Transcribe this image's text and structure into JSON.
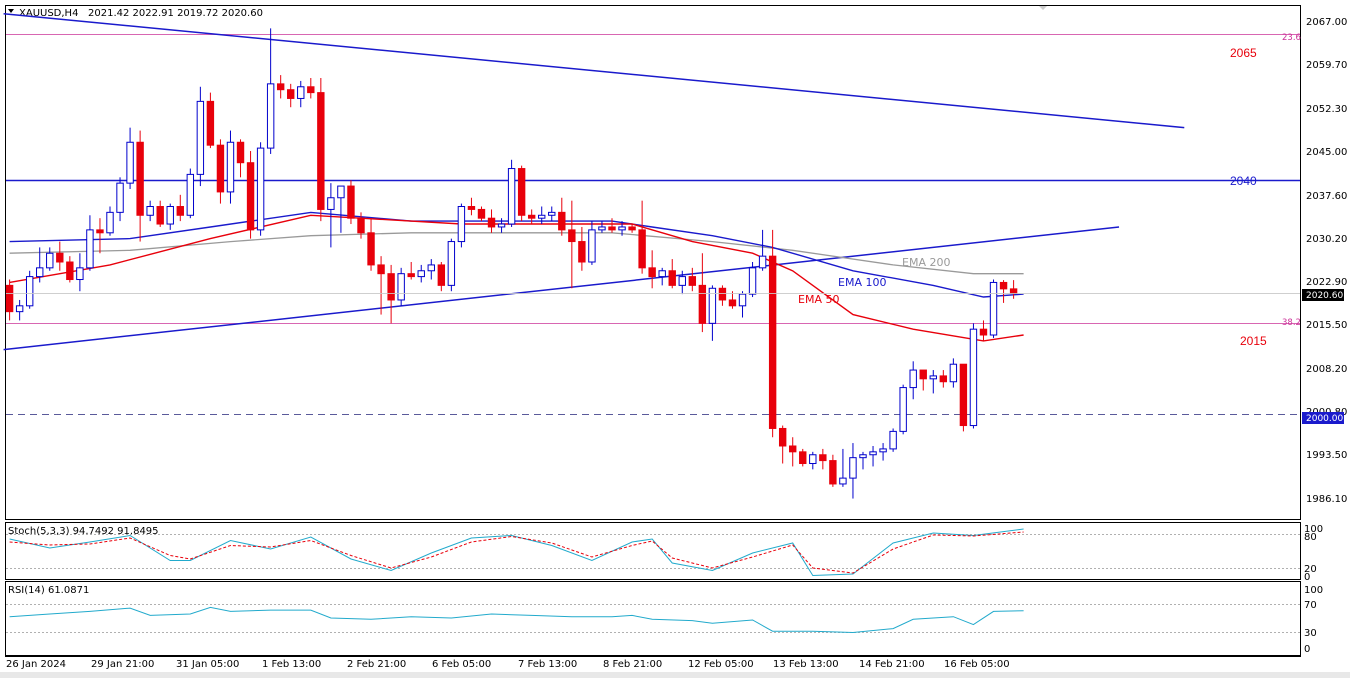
{
  "header": {
    "symbol": "XAUUSD,H4",
    "ohlc": "2021.42 2022.91 2019.72 2020.60"
  },
  "price_axis": {
    "labels": [
      "2067.00",
      "2059.70",
      "2052.30",
      "2045.00",
      "2037.60",
      "2030.20",
      "2022.90",
      "2015.50",
      "2008.20",
      "2000.80",
      "1993.50",
      "1986.10"
    ],
    "current_price": "2020.60",
    "round_level_tag": "2000.00"
  },
  "time_axis": {
    "labels": [
      "26 Jan 2024",
      "29 Jan 21:00",
      "31 Jan 05:00",
      "1 Feb 13:00",
      "2 Feb 21:00",
      "6 Feb 05:00",
      "7 Feb 13:00",
      "8 Feb 21:00",
      "12 Feb 05:00",
      "13 Feb 13:00",
      "14 Feb 21:00",
      "16 Feb 05:00"
    ]
  },
  "annotations": {
    "level_2065": "2065",
    "level_2040": "2040",
    "level_2015": "2015",
    "fib_236": "23.6",
    "fib_382": "38.2",
    "ema50": "EMA 50",
    "ema100": "EMA 100",
    "ema200": "EMA 200"
  },
  "stoch": {
    "label": "Stoch(5,3,3) 94.7492 91.8495",
    "axis": [
      "100",
      "80",
      "20",
      "0"
    ]
  },
  "rsi": {
    "label": "RSI(14) 61.0871",
    "axis": [
      "100",
      "70",
      "30",
      "0"
    ]
  },
  "colors": {
    "bull_fill": "#ffffff",
    "bear_fill": "#e8000b",
    "candle_outline": "#0000cc",
    "ema50": "#e8000b",
    "ema100": "#1a1acc",
    "ema200": "#9a9a9a",
    "trendline": "#1a1acc",
    "fib": "#cc3399",
    "stoch_main": "#22aacc",
    "stoch_signal": "#e8000b",
    "rsi": "#22aacc"
  },
  "chart_data": {
    "type": "candlestick",
    "symbol": "XAUUSD",
    "timeframe": "H4",
    "ylim": [
      1982,
      2070
    ],
    "candles": [
      [
        2022.0,
        2023.0,
        2016.0,
        2017.5
      ],
      [
        2017.5,
        2019.5,
        2016.0,
        2018.5
      ],
      [
        2018.5,
        2024.5,
        2018.0,
        2023.5
      ],
      [
        2023.5,
        2028.5,
        2022.5,
        2025.0
      ],
      [
        2025.0,
        2028.5,
        2024.5,
        2027.5
      ],
      [
        2027.5,
        2029.5,
        2024.5,
        2026.0
      ],
      [
        2026.0,
        2027.0,
        2022.5,
        2023.0
      ],
      [
        2023.0,
        2027.5,
        2021.0,
        2025.0
      ],
      [
        2025.0,
        2034.0,
        2024.5,
        2031.5
      ],
      [
        2031.5,
        2033.5,
        2027.5,
        2031.0
      ],
      [
        2031.0,
        2035.5,
        2030.5,
        2034.5
      ],
      [
        2034.5,
        2040.5,
        2033.0,
        2039.5
      ],
      [
        2039.5,
        2049.0,
        2038.5,
        2046.5
      ],
      [
        2046.5,
        2048.5,
        2029.5,
        2034.0
      ],
      [
        2034.0,
        2036.5,
        2033.0,
        2035.5
      ],
      [
        2035.5,
        2036.5,
        2032.0,
        2032.5
      ],
      [
        2032.5,
        2036.0,
        2031.5,
        2035.5
      ],
      [
        2035.5,
        2037.5,
        2033.0,
        2034.0
      ],
      [
        2034.0,
        2042.0,
        2033.5,
        2041.0
      ],
      [
        2041.0,
        2056.0,
        2039.0,
        2053.5
      ],
      [
        2053.5,
        2055.0,
        2045.5,
        2046.0
      ],
      [
        2046.0,
        2047.0,
        2036.0,
        2038.0
      ],
      [
        2038.0,
        2048.5,
        2036.0,
        2046.5
      ],
      [
        2046.5,
        2047.0,
        2040.5,
        2043.0
      ],
      [
        2043.0,
        2045.0,
        2030.0,
        2031.5
      ],
      [
        2031.5,
        2046.5,
        2030.5,
        2045.5
      ],
      [
        2045.5,
        2066.0,
        2044.5,
        2056.5
      ],
      [
        2056.5,
        2058.0,
        2054.0,
        2055.5
      ],
      [
        2055.5,
        2056.5,
        2052.5,
        2054.0
      ],
      [
        2054.0,
        2057.0,
        2052.5,
        2056.0
      ],
      [
        2056.0,
        2057.5,
        2054.0,
        2055.0
      ],
      [
        2055.0,
        2057.5,
        2033.0,
        2035.0
      ],
      [
        2035.0,
        2039.5,
        2028.5,
        2037.0
      ],
      [
        2037.0,
        2039.0,
        2031.0,
        2039.0
      ],
      [
        2039.0,
        2040.0,
        2032.5,
        2033.5
      ],
      [
        2033.5,
        2034.5,
        2030.0,
        2031.0
      ],
      [
        2031.0,
        2033.5,
        2024.5,
        2025.5
      ],
      [
        2025.5,
        2027.0,
        2017.0,
        2024.0
      ],
      [
        2024.0,
        2025.5,
        2015.5,
        2019.5
      ],
      [
        2019.5,
        2025.0,
        2018.5,
        2024.0
      ],
      [
        2024.0,
        2026.0,
        2023.0,
        2023.5
      ],
      [
        2023.5,
        2025.5,
        2022.5,
        2024.5
      ],
      [
        2024.5,
        2026.5,
        2023.0,
        2025.5
      ],
      [
        2025.5,
        2026.0,
        2021.0,
        2022.0
      ],
      [
        2022.0,
        2030.0,
        2021.0,
        2029.5
      ],
      [
        2029.5,
        2036.0,
        2028.5,
        2035.5
      ],
      [
        2035.5,
        2037.0,
        2034.0,
        2035.0
      ],
      [
        2035.0,
        2035.5,
        2033.0,
        2033.5
      ],
      [
        2033.5,
        2035.0,
        2031.0,
        2032.0
      ],
      [
        2032.0,
        2033.5,
        2031.0,
        2032.5
      ],
      [
        2032.5,
        2043.5,
        2032.0,
        2042.0
      ],
      [
        2042.0,
        2042.5,
        2033.0,
        2034.0
      ],
      [
        2034.0,
        2035.0,
        2032.5,
        2033.5
      ],
      [
        2033.5,
        2035.5,
        2032.5,
        2034.0
      ],
      [
        2034.0,
        2035.5,
        2033.0,
        2034.5
      ],
      [
        2034.5,
        2037.0,
        2030.5,
        2031.5
      ],
      [
        2031.5,
        2036.5,
        2021.5,
        2029.5
      ],
      [
        2029.5,
        2032.0,
        2024.5,
        2026.0
      ],
      [
        2026.0,
        2033.0,
        2025.5,
        2031.5
      ],
      [
        2031.5,
        2033.0,
        2031.0,
        2032.0
      ],
      [
        2032.0,
        2033.5,
        2031.0,
        2031.5
      ],
      [
        2031.5,
        2033.0,
        2030.5,
        2032.0
      ],
      [
        2032.0,
        2032.5,
        2031.0,
        2031.5
      ],
      [
        2031.5,
        2036.5,
        2024.0,
        2025.0
      ],
      [
        2025.0,
        2028.0,
        2021.5,
        2023.5
      ],
      [
        2023.5,
        2025.0,
        2022.0,
        2024.5
      ],
      [
        2024.5,
        2026.5,
        2021.5,
        2022.0
      ],
      [
        2022.0,
        2024.5,
        2020.5,
        2023.5
      ],
      [
        2023.5,
        2025.0,
        2021.0,
        2022.0
      ],
      [
        2022.0,
        2027.5,
        2014.0,
        2015.5
      ],
      [
        2015.5,
        2022.0,
        2012.5,
        2021.5
      ],
      [
        2021.5,
        2022.0,
        2018.5,
        2019.5
      ],
      [
        2019.5,
        2021.0,
        2018.0,
        2018.5
      ],
      [
        2018.5,
        2021.0,
        2016.5,
        2020.5
      ],
      [
        2020.5,
        2026.0,
        2020.0,
        2025.0
      ],
      [
        2025.0,
        2031.5,
        2024.5,
        2027.0
      ],
      [
        2027.0,
        2031.5,
        1996.0,
        1997.5
      ],
      [
        1997.5,
        1998.0,
        1991.5,
        1994.5
      ],
      [
        1994.5,
        1996.0,
        1991.0,
        1993.5
      ],
      [
        1993.5,
        1994.0,
        1991.0,
        1991.5
      ],
      [
        1991.5,
        1993.5,
        1990.5,
        1993.0
      ],
      [
        1993.0,
        1994.0,
        1990.5,
        1992.0
      ],
      [
        1992.0,
        1993.0,
        1987.5,
        1988.0
      ],
      [
        1988.0,
        1994.0,
        1987.5,
        1989.0
      ],
      [
        1989.0,
        1995.0,
        1985.5,
        1992.5
      ],
      [
        1992.5,
        1993.5,
        1990.5,
        1993.0
      ],
      [
        1993.0,
        1994.5,
        1991.0,
        1993.5
      ],
      [
        1993.5,
        1995.0,
        1992.0,
        1994.0
      ],
      [
        1994.0,
        1997.5,
        1993.5,
        1997.0
      ],
      [
        1997.0,
        2005.0,
        1996.5,
        2004.5
      ],
      [
        2004.5,
        2009.0,
        2002.5,
        2007.5
      ],
      [
        2007.5,
        2007.5,
        2004.0,
        2006.0
      ],
      [
        2006.0,
        2007.5,
        2003.5,
        2006.5
      ],
      [
        2006.5,
        2007.5,
        2004.5,
        2005.5
      ],
      [
        2005.5,
        2009.5,
        2004.5,
        2008.5
      ],
      [
        2008.5,
        2008.5,
        1997.0,
        1998.0
      ],
      [
        1998.0,
        2015.5,
        1997.5,
        2014.5
      ],
      [
        2014.5,
        2016.0,
        2012.5,
        2013.5
      ],
      [
        2013.5,
        2023.0,
        2013.0,
        2022.5
      ],
      [
        2022.5,
        2022.9,
        2019.0,
        2021.4
      ],
      [
        2021.4,
        2022.9,
        2019.7,
        2020.6
      ]
    ],
    "ema50": [
      [
        0,
        2022.5
      ],
      [
        10,
        2025.5
      ],
      [
        20,
        2030.0
      ],
      [
        30,
        2034.0
      ],
      [
        35,
        2033.5
      ],
      [
        45,
        2032.5
      ],
      [
        55,
        2032.5
      ],
      [
        62,
        2032.5
      ],
      [
        68,
        2029.5
      ],
      [
        74,
        2027.5
      ],
      [
        78,
        2024.5
      ],
      [
        84,
        2017.0
      ],
      [
        90,
        2014.5
      ],
      [
        97,
        2012.5
      ],
      [
        101,
        2013.5
      ]
    ],
    "ema100": [
      [
        0,
        2029.5
      ],
      [
        12,
        2030.0
      ],
      [
        20,
        2032.0
      ],
      [
        30,
        2034.5
      ],
      [
        40,
        2033.0
      ],
      [
        50,
        2033.0
      ],
      [
        60,
        2033.0
      ],
      [
        64,
        2032.0
      ],
      [
        70,
        2030.5
      ],
      [
        76,
        2028.5
      ],
      [
        84,
        2024.5
      ],
      [
        92,
        2022.0
      ],
      [
        97,
        2020.0
      ],
      [
        101,
        2020.5
      ]
    ],
    "ema200": [
      [
        0,
        2027.5
      ],
      [
        12,
        2028.0
      ],
      [
        22,
        2029.5
      ],
      [
        30,
        2030.5
      ],
      [
        40,
        2031.0
      ],
      [
        50,
        2031.0
      ],
      [
        60,
        2031.0
      ],
      [
        70,
        2029.5
      ],
      [
        78,
        2028.0
      ],
      [
        88,
        2025.5
      ],
      [
        96,
        2024.0
      ],
      [
        101,
        2024.0
      ]
    ],
    "horizontal_levels": [
      {
        "price": 2065.0,
        "label": "2065",
        "style": "fib",
        "fib": "23.6"
      },
      {
        "price": 2040.0,
        "label": "2040",
        "style": "solid"
      },
      {
        "price": 2015.5,
        "label": "2015",
        "style": "fib",
        "fib": "38.2"
      },
      {
        "price": 2000.0,
        "label": "2000.00",
        "style": "dashed"
      }
    ],
    "trendlines": [
      {
        "from": [
          -0.6,
          2068.5
        ],
        "to": [
          117,
          2049.0
        ]
      },
      {
        "from": [
          -0.6,
          2011.0
        ],
        "to": [
          110.5,
          2032.0
        ]
      }
    ],
    "stochastic": {
      "period": "5,3,3",
      "main_value": 94.7492,
      "signal_value": 91.8495,
      "ylim": [
        0,
        100
      ],
      "levels": [
        80,
        20
      ],
      "main": [
        [
          0,
          78
        ],
        [
          4,
          60
        ],
        [
          8,
          72
        ],
        [
          12,
          85
        ],
        [
          16,
          35
        ],
        [
          18,
          35
        ],
        [
          22,
          75
        ],
        [
          26,
          58
        ],
        [
          30,
          82
        ],
        [
          34,
          38
        ],
        [
          38,
          15
        ],
        [
          42,
          50
        ],
        [
          46,
          80
        ],
        [
          50,
          85
        ],
        [
          54,
          65
        ],
        [
          58,
          35
        ],
        [
          62,
          72
        ],
        [
          64,
          78
        ],
        [
          66,
          30
        ],
        [
          70,
          15
        ],
        [
          74,
          50
        ],
        [
          78,
          70
        ],
        [
          80,
          5
        ],
        [
          84,
          8
        ],
        [
          88,
          70
        ],
        [
          92,
          90
        ],
        [
          96,
          85
        ],
        [
          101,
          98
        ]
      ],
      "signal": [
        [
          0,
          72
        ],
        [
          4,
          66
        ],
        [
          8,
          68
        ],
        [
          12,
          80
        ],
        [
          16,
          45
        ],
        [
          18,
          38
        ],
        [
          22,
          65
        ],
        [
          26,
          62
        ],
        [
          30,
          75
        ],
        [
          34,
          45
        ],
        [
          38,
          20
        ],
        [
          42,
          42
        ],
        [
          46,
          72
        ],
        [
          50,
          83
        ],
        [
          54,
          70
        ],
        [
          58,
          42
        ],
        [
          62,
          65
        ],
        [
          64,
          74
        ],
        [
          66,
          40
        ],
        [
          70,
          20
        ],
        [
          74,
          42
        ],
        [
          78,
          66
        ],
        [
          80,
          20
        ],
        [
          84,
          10
        ],
        [
          88,
          58
        ],
        [
          92,
          86
        ],
        [
          96,
          84
        ],
        [
          101,
          92
        ]
      ]
    },
    "rsi": {
      "period": 14,
      "value": 61.0871,
      "ylim": [
        0,
        100
      ],
      "levels": [
        70,
        30
      ],
      "values": [
        [
          0,
          52
        ],
        [
          4,
          56
        ],
        [
          8,
          60
        ],
        [
          12,
          65
        ],
        [
          14,
          54
        ],
        [
          18,
          56
        ],
        [
          20,
          66
        ],
        [
          22,
          60
        ],
        [
          26,
          62
        ],
        [
          30,
          62
        ],
        [
          32,
          50
        ],
        [
          36,
          48
        ],
        [
          40,
          52
        ],
        [
          44,
          50
        ],
        [
          48,
          56
        ],
        [
          52,
          54
        ],
        [
          56,
          52
        ],
        [
          60,
          52
        ],
        [
          62,
          54
        ],
        [
          64,
          48
        ],
        [
          68,
          46
        ],
        [
          70,
          42
        ],
        [
          74,
          47
        ],
        [
          76,
          30
        ],
        [
          80,
          30
        ],
        [
          84,
          28
        ],
        [
          88,
          34
        ],
        [
          90,
          48
        ],
        [
          94,
          52
        ],
        [
          96,
          40
        ],
        [
          98,
          60
        ],
        [
          101,
          61
        ]
      ]
    }
  }
}
